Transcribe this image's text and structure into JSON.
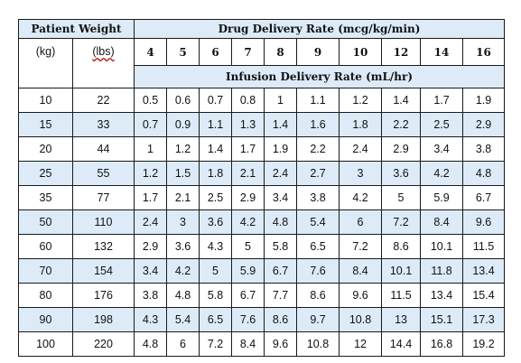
{
  "table": {
    "headers": {
      "patient_weight": "Patient Weight",
      "drug_delivery_rate": "Drug Delivery Rate (mcg/kg/min)",
      "infusion_delivery_rate": "Infusion Delivery Rate (mL/hr)",
      "unit_kg": "(kg)",
      "unit_lbs": "(lbs)"
    },
    "rate_columns": [
      "4",
      "5",
      "6",
      "7",
      "8",
      "9",
      "10",
      "12",
      "14",
      "16"
    ],
    "rows": [
      {
        "kg": "10",
        "lbs": "22",
        "values": [
          "0.5",
          "0.6",
          "0.7",
          "0.8",
          "1",
          "1.1",
          "1.2",
          "1.4",
          "1.7",
          "1.9"
        ]
      },
      {
        "kg": "15",
        "lbs": "33",
        "values": [
          "0.7",
          "0.9",
          "1.1",
          "1.3",
          "1.4",
          "1.6",
          "1.8",
          "2.2",
          "2.5",
          "2.9"
        ]
      },
      {
        "kg": "20",
        "lbs": "44",
        "values": [
          "1",
          "1.2",
          "1.4",
          "1.7",
          "1.9",
          "2.2",
          "2.4",
          "2.9",
          "3.4",
          "3.8"
        ]
      },
      {
        "kg": "25",
        "lbs": "55",
        "values": [
          "1.2",
          "1.5",
          "1.8",
          "2.1",
          "2.4",
          "2.7",
          "3",
          "3.6",
          "4.2",
          "4.8"
        ]
      },
      {
        "kg": "35",
        "lbs": "77",
        "values": [
          "1.7",
          "2.1",
          "2.5",
          "2.9",
          "3.4",
          "3.8",
          "4.2",
          "5",
          "5.9",
          "6.7"
        ]
      },
      {
        "kg": "50",
        "lbs": "110",
        "values": [
          "2.4",
          "3",
          "3.6",
          "4.2",
          "4.8",
          "5.4",
          "6",
          "7.2",
          "8.4",
          "9.6"
        ]
      },
      {
        "kg": "60",
        "lbs": "132",
        "values": [
          "2.9",
          "3.6",
          "4.3",
          "5",
          "5.8",
          "6.5",
          "7.2",
          "8.6",
          "10.1",
          "11.5"
        ]
      },
      {
        "kg": "70",
        "lbs": "154",
        "values": [
          "3.4",
          "4.2",
          "5",
          "5.9",
          "6.7",
          "7.6",
          "8.4",
          "10.1",
          "11.8",
          "13.4"
        ]
      },
      {
        "kg": "80",
        "lbs": "176",
        "values": [
          "3.8",
          "4.8",
          "5.8",
          "6.7",
          "7.7",
          "8.6",
          "9.6",
          "11.5",
          "13.4",
          "15.4"
        ]
      },
      {
        "kg": "90",
        "lbs": "198",
        "values": [
          "4.3",
          "5.4",
          "6.5",
          "7.6",
          "8.6",
          "9.7",
          "10.8",
          "13",
          "15.1",
          "17.3"
        ]
      },
      {
        "kg": "100",
        "lbs": "220",
        "values": [
          "4.8",
          "6",
          "7.2",
          "8.4",
          "9.6",
          "10.8",
          "12",
          "14.4",
          "16.8",
          "19.2"
        ]
      }
    ]
  },
  "colors": {
    "header_fill": "#dcebf7",
    "stripe_fill": "#dcebf7",
    "border": "#1a1a1a"
  }
}
